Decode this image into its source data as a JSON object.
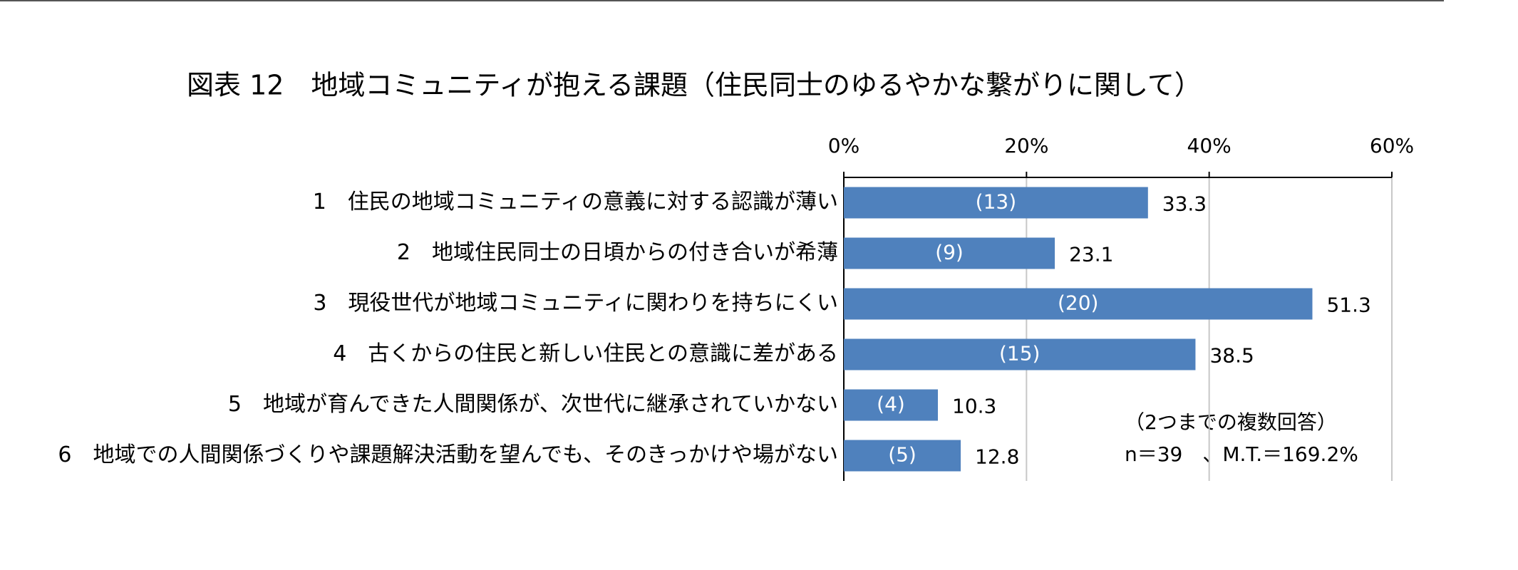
{
  "chart_data": {
    "type": "hbar",
    "title": "図表 12　地域コミュニティが抱える課題（住民同士のゆるやかな繋がりに関して）",
    "categories": [
      "1　住民の地域コミュニティの意義に対する認識が薄い",
      "2　地域住民同士の日頃からの付き合いが希薄",
      "3　現役世代が地域コミュニティに関わりを持ちにくい",
      "4　古くからの住民と新しい住民との意識に差がある",
      "5　地域が育んできた人間関係が、次世代に継承されていかない",
      "6　地域での人間関係づくりや課題解決活動を望んでも、そのきっかけや場がない"
    ],
    "values": [
      33.3,
      23.1,
      51.3,
      38.5,
      10.3,
      12.8
    ],
    "counts": {
      "values": [
        13,
        9,
        20,
        15,
        4,
        5
      ],
      "value_labels": [
        "(13)",
        "(9)",
        "(20)",
        "(15)",
        "(4)",
        "(5)"
      ]
    },
    "color": "#4f81bd",
    "xlim": [
      0,
      60
    ],
    "xticks": [
      {
        "value": 0,
        "label": "0%"
      },
      {
        "value": 20,
        "label": "20%"
      },
      {
        "value": 40,
        "label": "40%"
      },
      {
        "value": 60,
        "label": "60%"
      }
    ],
    "grid": true,
    "notes": [
      "（2つまでの複数回答）",
      "n＝39　、M.T.＝169.2%"
    ]
  }
}
